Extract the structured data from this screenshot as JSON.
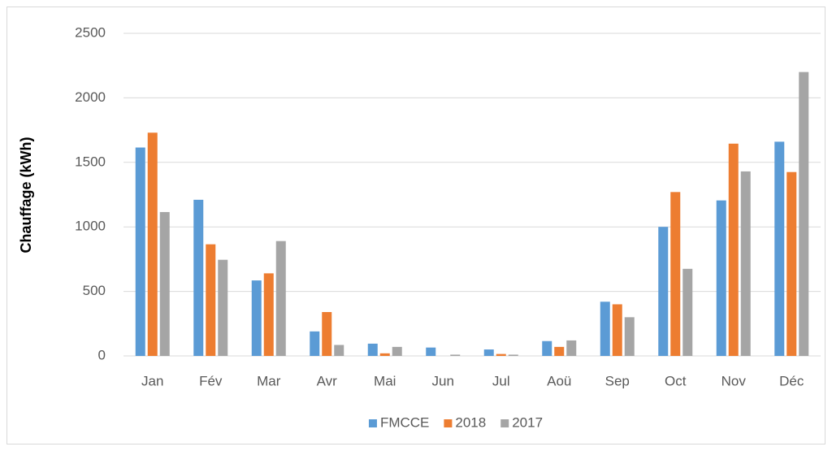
{
  "chart_data": {
    "type": "bar",
    "y_label": "Chauffage (kWh)",
    "categories": [
      "Jan",
      "Fév",
      "Mar",
      "Avr",
      "Mai",
      "Jun",
      "Jul",
      "Aoü",
      "Sep",
      "Oct",
      "Nov",
      "Déc"
    ],
    "series": [
      {
        "name": "FMCCE",
        "color": "#5b9bd5",
        "values": [
          1615,
          1210,
          585,
          190,
          95,
          65,
          50,
          115,
          420,
          1000,
          1205,
          1660
        ]
      },
      {
        "name": "2018",
        "color": "#ed7d31",
        "values": [
          1730,
          865,
          640,
          340,
          20,
          0,
          15,
          70,
          400,
          1270,
          1645,
          1425
        ]
      },
      {
        "name": "2017",
        "color": "#a5a5a5",
        "values": [
          1115,
          745,
          890,
          85,
          70,
          10,
          10,
          120,
          300,
          675,
          1430,
          2200
        ]
      }
    ],
    "ylim": [
      0,
      2500
    ],
    "yticks": [
      0,
      500,
      1000,
      1500,
      2000,
      2500
    ],
    "grid": true,
    "legend": "bottom"
  }
}
